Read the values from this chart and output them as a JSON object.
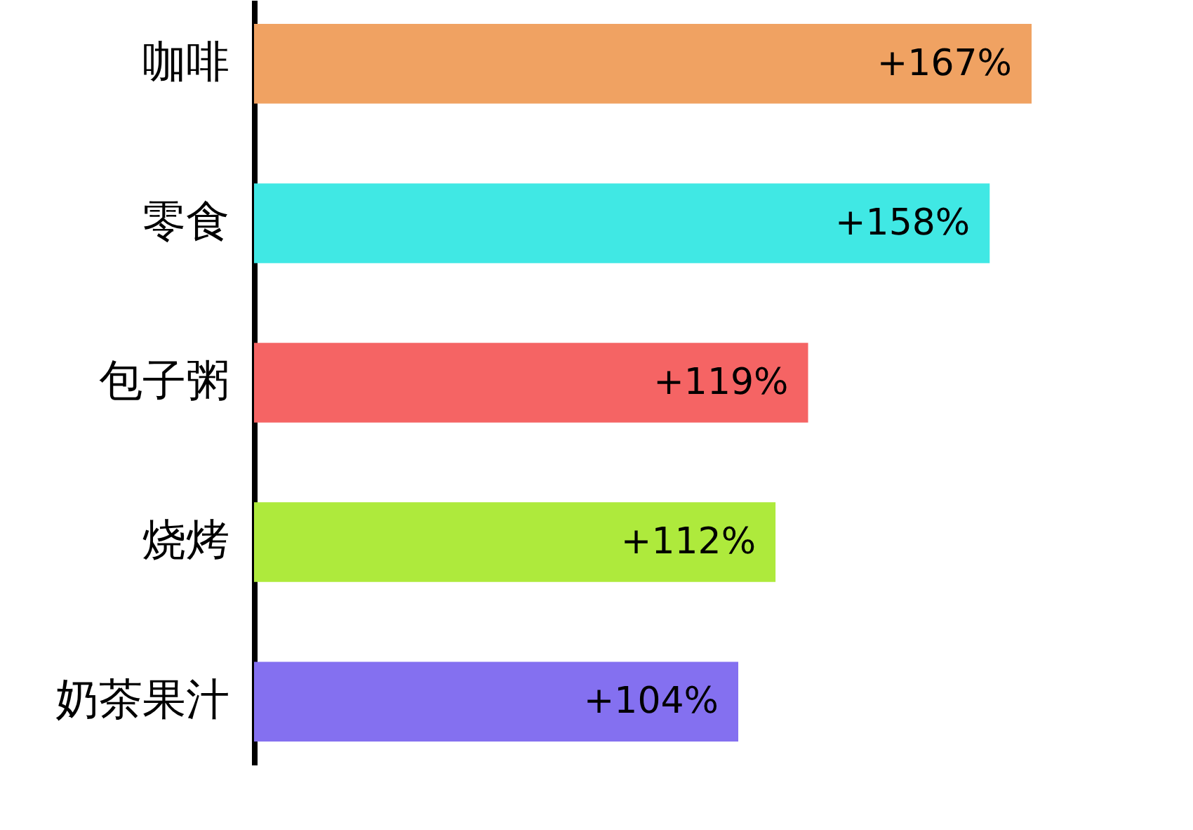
{
  "chart_data": {
    "type": "bar",
    "orientation": "horizontal",
    "categories": [
      "咖啡",
      "零食",
      "包子粥",
      "烧烤",
      "奶茶果汁"
    ],
    "values": [
      167,
      158,
      119,
      112,
      104
    ],
    "value_labels": [
      "+167%",
      "+158%",
      "+119%",
      "+112%",
      "+104%"
    ],
    "colors": [
      "#f0a262",
      "#40e8e4",
      "#f56464",
      "#aeea3c",
      "#8470f0"
    ]
  }
}
